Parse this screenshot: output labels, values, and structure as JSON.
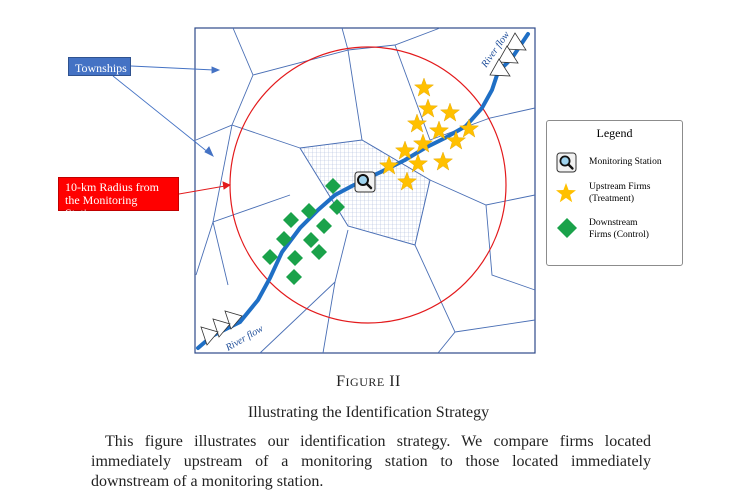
{
  "labels": {
    "townships": "Townships",
    "radius_line1": "10-km Radius from",
    "radius_line2": "the Monitoring Station",
    "river_flow_top": "River flow",
    "river_flow_bottom": "River flow"
  },
  "legend": {
    "title": "Legend",
    "monitoring_station": "Monitoring Station",
    "upstream_line1": "Upstream Firms",
    "upstream_line2": "(Treatment)",
    "downstream_line1": "Downstream",
    "downstream_line2": "Firms (Control)"
  },
  "caption": {
    "figure_first": "F",
    "figure_rest": "IGURE",
    "figure_number": "II",
    "title": "Illustrating the Identification Strategy",
    "text": "This figure illustrates our identification strategy. We compare firms located immediately upstream of a monitoring station to those located immediately downstream of a monitoring station."
  },
  "colors": {
    "circle": "#e31a1c",
    "river": "#1f6fc5",
    "boundary": "#4a6fb5",
    "star": "#ffc000",
    "diamond": "#1aa24a",
    "townships_box": "#4472c4",
    "radius_box": "#ff0000"
  },
  "icons": {
    "station": "magnifier-icon",
    "upstream": "star-icon",
    "downstream": "diamond-icon"
  }
}
